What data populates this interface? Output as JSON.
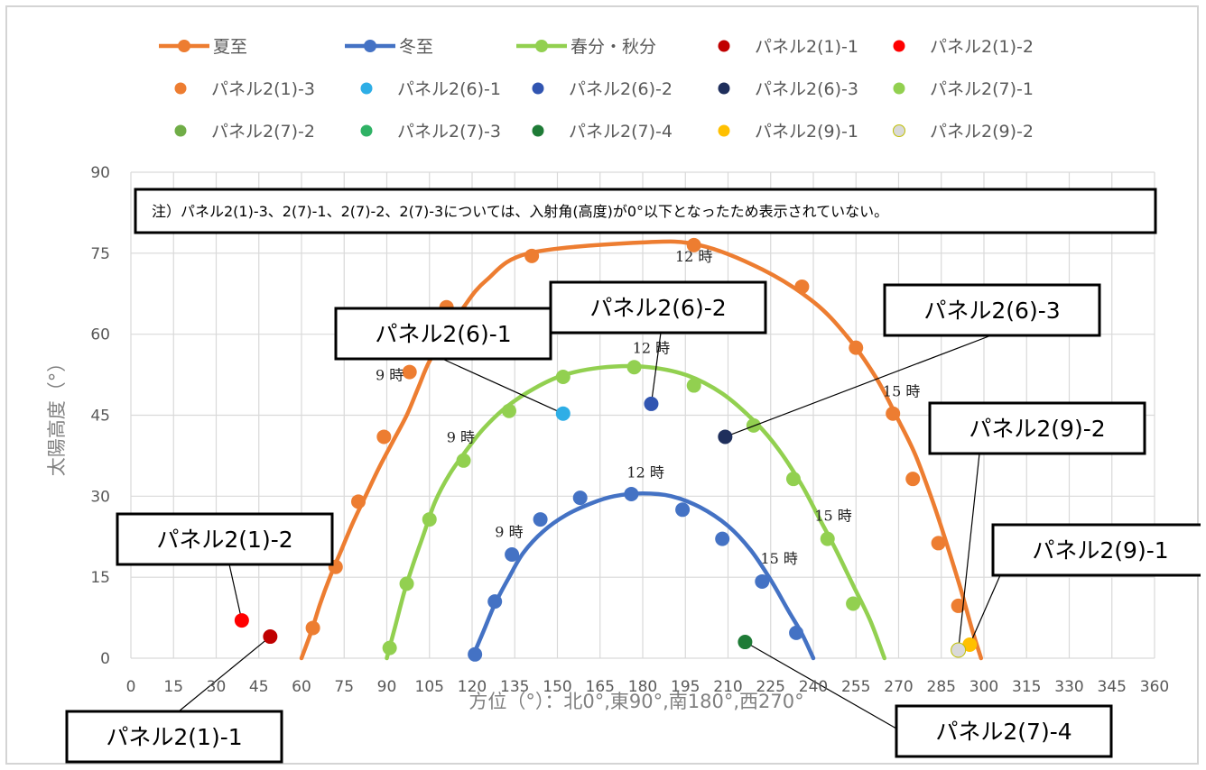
{
  "chart_data": {
    "type": "scatter",
    "xlabel": "方位（°）：北0°,東90°,南180°,西270°",
    "ylabel": "太陽高度（°）",
    "xlim": [
      0,
      360
    ],
    "ylim": [
      0,
      90
    ],
    "x_ticks": [
      0,
      15,
      30,
      45,
      60,
      75,
      90,
      105,
      120,
      135,
      150,
      165,
      180,
      195,
      210,
      225,
      240,
      255,
      270,
      285,
      300,
      315,
      330,
      345,
      360
    ],
    "y_ticks": [
      0,
      15,
      30,
      45,
      60,
      75,
      90
    ],
    "grid": true,
    "legend_position": "top",
    "lines": [
      {
        "name": "夏至",
        "color": "#ED7D31",
        "curve": [
          [
            60,
            0
          ],
          [
            63.5,
            5
          ],
          [
            66.5,
            10
          ],
          [
            70,
            15
          ],
          [
            74,
            20
          ],
          [
            78,
            25
          ],
          [
            82.5,
            30
          ],
          [
            87,
            35
          ],
          [
            92,
            40
          ],
          [
            97,
            45
          ],
          [
            101,
            50
          ],
          [
            105,
            55
          ],
          [
            111,
            60
          ],
          [
            117,
            65
          ],
          [
            125,
            70
          ],
          [
            140,
            75
          ],
          [
            180,
            77
          ],
          [
            200,
            76.5
          ],
          [
            222,
            72
          ],
          [
            240,
            66
          ],
          [
            252,
            59.5
          ],
          [
            262,
            52
          ],
          [
            270,
            44
          ],
          [
            276,
            37.5
          ],
          [
            282,
            29
          ],
          [
            287,
            21
          ],
          [
            292,
            12.5
          ],
          [
            296,
            5
          ],
          [
            299,
            0
          ]
        ],
        "markers": [
          [
            64,
            5.6
          ],
          [
            72,
            16.9
          ],
          [
            80,
            29
          ],
          [
            89,
            41
          ],
          [
            98,
            53
          ],
          [
            111,
            65
          ],
          [
            141,
            74.5
          ],
          [
            198,
            76.5
          ],
          [
            236,
            68.8
          ],
          [
            255,
            57.5
          ],
          [
            268,
            45.3
          ],
          [
            275,
            33.2
          ],
          [
            284,
            21.3
          ],
          [
            291,
            9.7
          ]
        ]
      },
      {
        "name": "冬至",
        "color": "#4472C4",
        "curve": [
          [
            120,
            0
          ],
          [
            124,
            5
          ],
          [
            128,
            10
          ],
          [
            133,
            15
          ],
          [
            138,
            19.5
          ],
          [
            145,
            23.5
          ],
          [
            153,
            26.5
          ],
          [
            162,
            28.7
          ],
          [
            170,
            30
          ],
          [
            180,
            30.5
          ],
          [
            190,
            30
          ],
          [
            200,
            28
          ],
          [
            210,
            24.5
          ],
          [
            218,
            20
          ],
          [
            225,
            14.5
          ],
          [
            231,
            9
          ],
          [
            236,
            4.5
          ],
          [
            240,
            0
          ]
        ],
        "markers": [
          [
            121,
            0.7
          ],
          [
            128,
            10.5
          ],
          [
            134,
            19.2
          ],
          [
            144,
            25.7
          ],
          [
            158,
            29.7
          ],
          [
            176,
            30.4
          ],
          [
            194,
            27.5
          ],
          [
            208,
            22.1
          ],
          [
            222,
            14.2
          ],
          [
            234,
            4.7
          ]
        ]
      },
      {
        "name": "春分・秋分",
        "color": "#92D050",
        "curve": [
          [
            90,
            0
          ],
          [
            93,
            6
          ],
          [
            96,
            12
          ],
          [
            99,
            17
          ],
          [
            103,
            23
          ],
          [
            107,
            29
          ],
          [
            112,
            34
          ],
          [
            118,
            38.5
          ],
          [
            124,
            42.5
          ],
          [
            132,
            46.5
          ],
          [
            142,
            50
          ],
          [
            152,
            52.4
          ],
          [
            165,
            53.8
          ],
          [
            180,
            54
          ],
          [
            195,
            52.5
          ],
          [
            208,
            49
          ],
          [
            220,
            43.5
          ],
          [
            228,
            38.5
          ],
          [
            236,
            32
          ],
          [
            242,
            26
          ],
          [
            248,
            20
          ],
          [
            254,
            13.5
          ],
          [
            260,
            7
          ],
          [
            265,
            0
          ]
        ],
        "markers": [
          [
            91,
            1.9
          ],
          [
            97,
            13.8
          ],
          [
            105,
            25.7
          ],
          [
            117,
            36.6
          ],
          [
            133,
            45.8
          ],
          [
            152,
            52.1
          ],
          [
            177,
            53.9
          ],
          [
            198,
            50.5
          ],
          [
            219,
            43.1
          ],
          [
            233,
            33.2
          ],
          [
            245,
            22.1
          ],
          [
            254,
            10.1
          ]
        ]
      }
    ],
    "points": [
      {
        "name": "パネル2(1)-1",
        "color": "#C00000",
        "x": 49,
        "y": 4
      },
      {
        "name": "パネル2(1)-2",
        "color": "#FF0000",
        "x": 39,
        "y": 7
      },
      {
        "name": "パネル2(1)-3",
        "color": "#ED7D31",
        "x": null,
        "y": null
      },
      {
        "name": "パネル2(6)-1",
        "color": "#2EAEE6",
        "x": 152,
        "y": 45.3
      },
      {
        "name": "パネル2(6)-2",
        "color": "#3155B1",
        "x": 183,
        "y": 47.1
      },
      {
        "name": "パネル2(6)-3",
        "color": "#1F2F5C",
        "x": 209,
        "y": 41
      },
      {
        "name": "パネル2(7)-1",
        "color": "#92D050",
        "x": null,
        "y": null
      },
      {
        "name": "パネル2(7)-2",
        "color": "#70AD47",
        "x": null,
        "y": null
      },
      {
        "name": "パネル2(7)-3",
        "color": "#2FB265",
        "x": null,
        "y": null
      },
      {
        "name": "パネル2(7)-4",
        "color": "#1E7B36",
        "x": 216,
        "y": 3
      },
      {
        "name": "パネル2(9)-1",
        "color": "#FFC000",
        "x": 295,
        "y": 2.5
      },
      {
        "name": "パネル2(9)-2",
        "color": "#D9D9D9",
        "x": 291,
        "y": 1.5
      }
    ],
    "time_labels": [
      {
        "text": "9 時",
        "x": 91,
        "y": 51.5
      },
      {
        "text": "12 時",
        "x": 198,
        "y": 73.5
      },
      {
        "text": "15 時",
        "x": 271,
        "y": 48.5
      },
      {
        "text": "9 時",
        "x": 116,
        "y": 40
      },
      {
        "text": "12 時",
        "x": 183,
        "y": 56.5
      },
      {
        "text": "15 時",
        "x": 247,
        "y": 25.5
      },
      {
        "text": "9 時",
        "x": 133,
        "y": 22.5
      },
      {
        "text": "12 時",
        "x": 181,
        "y": 33.5
      },
      {
        "text": "15 時",
        "x": 228,
        "y": 17.5
      }
    ],
    "annotations": [
      {
        "text": "パネル2(1)-1",
        "target": "パネル2(1)-1"
      },
      {
        "text": "パネル2(1)-2",
        "target": "パネル2(1)-2"
      },
      {
        "text": "パネル2(6)-1",
        "target": "パネル2(6)-1"
      },
      {
        "text": "パネル2(6)-2",
        "target": "パネル2(6)-2"
      },
      {
        "text": "パネル2(6)-3",
        "target": "パネル2(6)-3"
      },
      {
        "text": "パネル2(7)-4",
        "target": "パネル2(7)-4"
      },
      {
        "text": "パネル2(9)-1",
        "target": "パネル2(9)-1"
      },
      {
        "text": "パネル2(9)-2",
        "target": "パネル2(9)-2"
      }
    ],
    "note": "注）パネル2(1)-3、2(7)-1、2(7)-2、2(7)-3については、入射角(高度)が0°以下となったため表示されていない。"
  }
}
